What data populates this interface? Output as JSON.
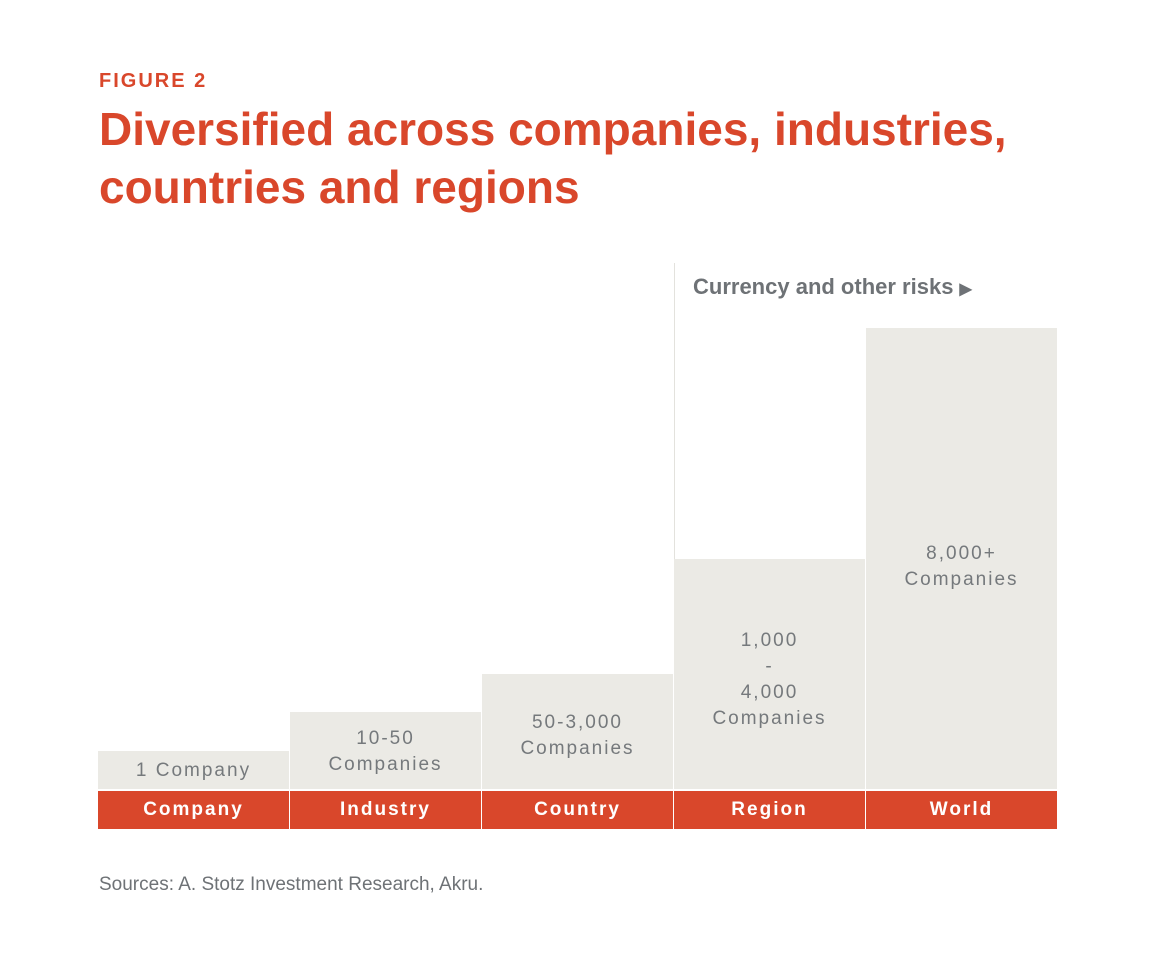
{
  "figure_label": "FIGURE 2",
  "title": "Diversified across companies, industries, countries and regions",
  "annotation": {
    "text": "Currency and other risks",
    "arrow_icon": "right-triangle-arrow"
  },
  "source": "Sources: A. Stotz Investment Research, Akru.",
  "colors": {
    "accent": "#d9472b",
    "bar": "#ebeae5",
    "label_text": "#75797c",
    "note_text": "#6e7276"
  },
  "chart_data": {
    "type": "bar",
    "title": "Diversified across companies, industries, countries and regions",
    "categories": [
      "Company",
      "Industry",
      "Country",
      "Region",
      "World"
    ],
    "values": [
      1,
      2,
      3,
      6,
      12
    ],
    "value_labels": [
      "1 Company",
      "10-50\nCompanies",
      "50-3,000\nCompanies",
      "1,000\n-\n4,000\nCompanies",
      "8,000+\nCompanies"
    ],
    "xlabel": "",
    "ylabel": "",
    "grid": false,
    "legend": "none"
  }
}
